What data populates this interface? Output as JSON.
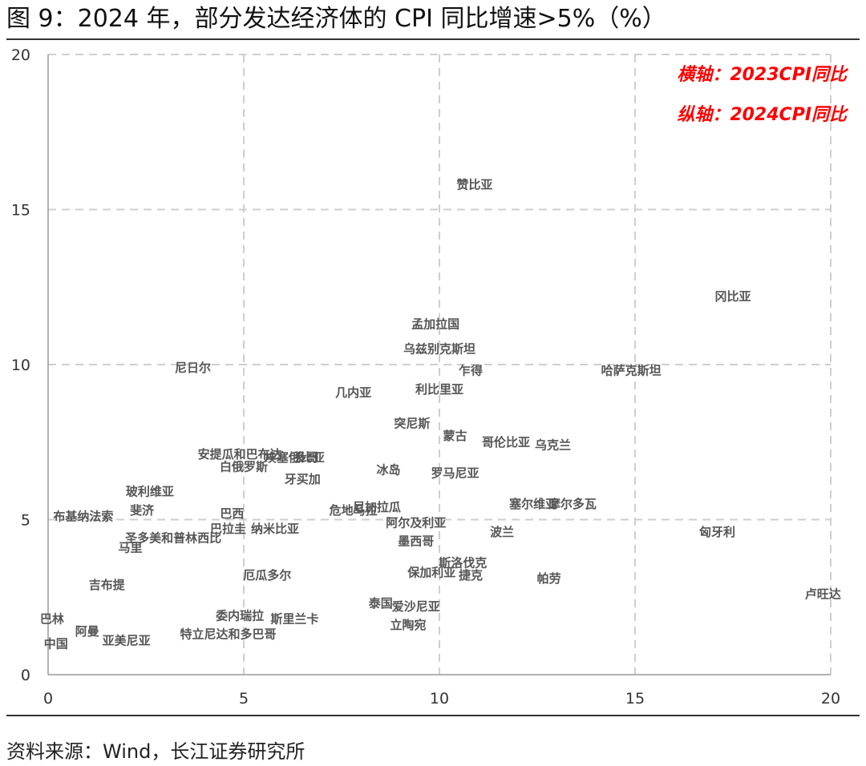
{
  "figure": {
    "title": "图 9：2024 年，部分发达经济体的 CPI 同比增速>5%（%）",
    "source": "资料来源：Wind，长江证券研究所"
  },
  "chart_data": {
    "type": "scatter",
    "title": "",
    "xlabel": "",
    "ylabel": "",
    "xlim": [
      0,
      20
    ],
    "ylim": [
      0,
      20
    ],
    "xticks": [
      0,
      5,
      10,
      15,
      20
    ],
    "yticks": [
      0,
      5,
      10,
      15,
      20
    ],
    "grid": true,
    "annotations": [
      "横轴：2023CPI同比",
      "纵轴：2024CPI同比"
    ],
    "points": [
      {
        "label": "赞比亚",
        "x": 10.9,
        "y": 15.8
      },
      {
        "label": "冈比亚",
        "x": 17.5,
        "y": 12.2
      },
      {
        "label": "孟加拉国",
        "x": 9.9,
        "y": 11.3
      },
      {
        "label": "乌兹别克斯坦",
        "x": 10.0,
        "y": 10.5
      },
      {
        "label": "尼日尔",
        "x": 3.7,
        "y": 9.9
      },
      {
        "label": "乍得",
        "x": 10.8,
        "y": 9.8
      },
      {
        "label": "哈萨克斯坦",
        "x": 14.9,
        "y": 9.8
      },
      {
        "label": "几内亚",
        "x": 7.8,
        "y": 9.1
      },
      {
        "label": "利比里亚",
        "x": 10.0,
        "y": 9.2
      },
      {
        "label": "突尼斯",
        "x": 9.3,
        "y": 8.1
      },
      {
        "label": "蒙古",
        "x": 10.4,
        "y": 7.7
      },
      {
        "label": "哥伦比亚",
        "x": 11.7,
        "y": 7.5
      },
      {
        "label": "乌克兰",
        "x": 12.9,
        "y": 7.4
      },
      {
        "label": "安提瓜和巴布达",
        "x": 4.9,
        "y": 7.1
      },
      {
        "label": "埃塞俄比亚",
        "x": 6.3,
        "y": 7.0
      },
      {
        "label": "多哥",
        "x": 6.6,
        "y": 7.0
      },
      {
        "label": "白俄罗斯",
        "x": 5.0,
        "y": 6.7
      },
      {
        "label": "冰岛",
        "x": 8.7,
        "y": 6.6
      },
      {
        "label": "罗马尼亚",
        "x": 10.4,
        "y": 6.5
      },
      {
        "label": "牙买加",
        "x": 6.5,
        "y": 6.3
      },
      {
        "label": "玻利维亚",
        "x": 2.6,
        "y": 5.9
      },
      {
        "label": "斐济",
        "x": 2.4,
        "y": 5.3
      },
      {
        "label": "塞尔维亚",
        "x": 12.4,
        "y": 5.5
      },
      {
        "label": "摩尔多瓦",
        "x": 13.4,
        "y": 5.5
      },
      {
        "label": "布基纳法索",
        "x": 0.9,
        "y": 5.1
      },
      {
        "label": "巴西",
        "x": 4.7,
        "y": 5.2
      },
      {
        "label": "危地马拉",
        "x": 7.8,
        "y": 5.3
      },
      {
        "label": "尼加拉瓜",
        "x": 8.4,
        "y": 5.4
      },
      {
        "label": "阿尔及利亚",
        "x": 9.4,
        "y": 4.9
      },
      {
        "label": "波兰",
        "x": 11.6,
        "y": 4.6
      },
      {
        "label": "匈牙利",
        "x": 17.1,
        "y": 4.6
      },
      {
        "label": "斯洛伐克",
        "x": 10.6,
        "y": 3.6
      },
      {
        "label": "保加利亚",
        "x": 9.8,
        "y": 3.3
      },
      {
        "label": "捷克",
        "x": 10.8,
        "y": 3.2
      },
      {
        "label": "帕劳",
        "x": 12.8,
        "y": 3.1
      },
      {
        "label": "卢旺达",
        "x": 19.8,
        "y": 2.6
      },
      {
        "label": "爱沙尼亚",
        "x": 9.4,
        "y": 2.2
      },
      {
        "label": "泰国",
        "x": 8.5,
        "y": 2.3
      },
      {
        "label": "立陶宛",
        "x": 9.2,
        "y": 1.6
      },
      {
        "label": "马里",
        "x": 2.1,
        "y": 4.1
      },
      {
        "label": "吉布提",
        "x": 1.5,
        "y": 2.9
      },
      {
        "label": "巴林",
        "x": 0.1,
        "y": 1.8
      },
      {
        "label": "阿曼",
        "x": 1.0,
        "y": 1.4
      },
      {
        "label": "中国",
        "x": 0.2,
        "y": 1.0
      },
      {
        "label": "亚美尼亚",
        "x": 2.0,
        "y": 1.1
      },
      {
        "label": "委内瑞拉",
        "x": 4.9,
        "y": 1.9
      },
      {
        "label": "特立尼达和多巴哥",
        "x": 4.6,
        "y": 1.3
      },
      {
        "label": "斯里兰卡",
        "x": 6.3,
        "y": 1.8
      },
      {
        "label": "圣多美和普林西比",
        "x": 3.2,
        "y": 4.4
      },
      {
        "label": "巴拉圭",
        "x": 4.6,
        "y": 4.7
      },
      {
        "label": "纳米比亚",
        "x": 5.8,
        "y": 4.7
      },
      {
        "label": "厄瓜多尔",
        "x": 5.6,
        "y": 3.2
      },
      {
        "label": "墨西哥",
        "x": 9.4,
        "y": 4.3
      }
    ]
  }
}
